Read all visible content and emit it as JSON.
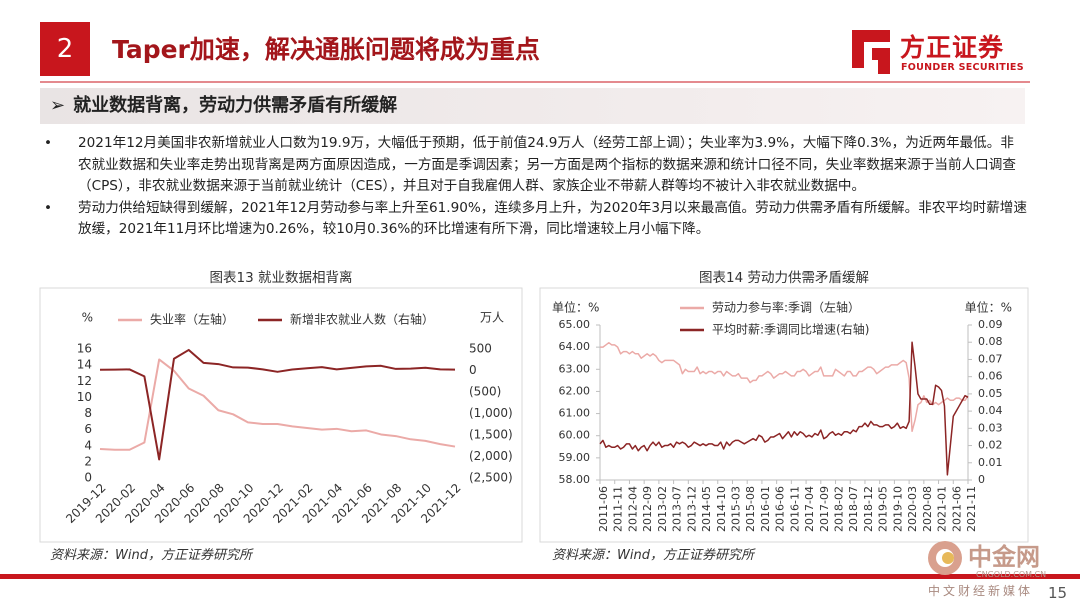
{
  "header": {
    "section_number": "2",
    "title": "Taper加速，解决通胀问题将成为重点"
  },
  "logo": {
    "name": "方正证券",
    "english": "FOUNDER SECURITIES"
  },
  "subheader": "就业数据背离，劳动力供需矛盾有所缓解",
  "bullets": [
    "2021年12月美国非农新增就业人口数为19.9万，大幅低于预期，低于前值24.9万人（经劳工部上调）；失业率为3.9%，大幅下降0.3%，为近两年最低。非农就业数据和失业率走势出现背离是两方面原因造成，一方面是季调因素；另一方面是两个指标的数据来源和统计口径不同，失业率数据来源于当前人口调查（CPS），非农就业数据来源于当前就业统计（CES），并且对于自我雇佣人群、家族企业不带薪人群等均不被计入非农就业数据中。",
    "劳动力供给短缺得到缓解，2021年12月劳动参与率上升至61.90%，连续多月上升，为2020年3月以来最高值。劳动力供需矛盾有所缓解。非农平均时薪增速放缓，2021年11月环比增速为0.26%，较10月0.36%的环比增速有所下滑，同比增速较上月小幅下降。"
  ],
  "chart_data": [
    {
      "type": "line",
      "title": "图表13 就业数据相背离",
      "y_label": "%",
      "y2_label": "万人",
      "categories": [
        "2019-12",
        null,
        "2020-02",
        null,
        "2020-04",
        null,
        "2020-06",
        null,
        "2020-08",
        null,
        "2020-10",
        null,
        "2020-12",
        null,
        "2021-02",
        null,
        "2021-04",
        null,
        "2021-06",
        null,
        "2021-08",
        null,
        "2021-10",
        null,
        "2021-12"
      ],
      "series": [
        {
          "name": "失业率（左轴）",
          "color": "#ebaaa7",
          "values": [
            3.6,
            3.5,
            3.5,
            4.4,
            14.7,
            13.3,
            11.1,
            10.2,
            8.4,
            7.9,
            6.9,
            6.7,
            6.7,
            6.4,
            6.2,
            6.0,
            6.1,
            5.8,
            5.9,
            5.4,
            5.2,
            4.8,
            4.6,
            4.2,
            3.9
          ]
        },
        {
          "name": "新增非农就业人数（右轴）",
          "color": "#8c2525",
          "axis": "y2",
          "values": [
            18.4,
            21.4,
            25.1,
            -137.3,
            -2067.9,
            272.5,
            478.1,
            176.1,
            149.3,
            71.6,
            68,
            26.4,
            -30.6,
            23.3,
            53.6,
            78.5,
            26.9,
            61.4,
            96.2,
            109.1,
            36.6,
            42.4,
            64.8,
            24.9,
            19.9
          ]
        }
      ],
      "ylim": [
        0,
        16
      ],
      "yticks": [
        0,
        2,
        4,
        6,
        8,
        10,
        12,
        14,
        16
      ],
      "y2lim": [
        -2500,
        500
      ],
      "y2ticks": [
        500,
        0,
        {
          "value": -500,
          "label": "(500)"
        },
        {
          "value": -1000,
          "label": "(1,000)"
        },
        {
          "value": -1500,
          "label": "(1,500)"
        },
        {
          "value": -2000,
          "label": "(2,000)"
        },
        {
          "value": -2500,
          "label": "(2,500)"
        }
      ],
      "grid": false,
      "legend": "top",
      "source": "资料来源：Wind，方正证券研究所"
    },
    {
      "type": "line",
      "title": "图表14 劳动力供需矛盾缓解",
      "y_label": "单位：%",
      "y2_label": "单位：%",
      "categories": [
        "2011-06",
        null,
        null,
        null,
        null,
        "2011-11",
        null,
        null,
        null,
        null,
        "2012-04",
        null,
        null,
        null,
        null,
        "2012-09",
        null,
        null,
        null,
        null,
        "2013-02",
        null,
        null,
        null,
        null,
        "2013-07",
        null,
        null,
        null,
        null,
        "2013-12",
        null,
        null,
        null,
        null,
        "2014-05",
        null,
        null,
        null,
        null,
        "2014-10",
        null,
        null,
        null,
        null,
        "2015-03",
        null,
        null,
        null,
        null,
        "2015-08",
        null,
        null,
        null,
        null,
        "2016-01",
        null,
        null,
        null,
        null,
        "2016-06",
        null,
        null,
        null,
        null,
        "2016-11",
        null,
        null,
        null,
        null,
        "2017-04",
        null,
        null,
        null,
        null,
        "2017-09",
        null,
        null,
        null,
        null,
        "2018-02",
        null,
        null,
        null,
        null,
        "2018-07",
        null,
        null,
        null,
        null,
        "2018-12",
        null,
        null,
        null,
        null,
        "2019-05",
        null,
        null,
        null,
        null,
        "2019-10",
        null,
        null,
        null,
        null,
        "2020-03",
        null,
        null,
        null,
        null,
        "2020-08",
        null,
        null,
        null,
        null,
        "2021-01",
        null,
        null,
        null,
        null,
        "2021-06",
        null,
        null,
        null,
        null,
        "2021-11"
      ],
      "series": [
        {
          "name": "劳动力参与率:季调（左轴）",
          "color": "#ebaaa7",
          "values": [
            64.0,
            64.0,
            64.1,
            64.2,
            64.1,
            64.1,
            64.0,
            63.7,
            63.8,
            63.8,
            63.7,
            63.8,
            63.7,
            63.7,
            63.5,
            63.6,
            63.7,
            63.6,
            63.7,
            63.6,
            63.4,
            63.3,
            63.4,
            63.4,
            63.4,
            63.4,
            63.3,
            63.2,
            62.8,
            63.0,
            62.9,
            62.9,
            62.9,
            63.1,
            62.8,
            62.9,
            62.8,
            62.9,
            62.9,
            62.8,
            62.9,
            62.9,
            62.7,
            62.9,
            62.8,
            62.7,
            62.7,
            62.8,
            62.6,
            62.6,
            62.6,
            62.4,
            62.5,
            62.5,
            62.7,
            62.7,
            62.8,
            62.9,
            62.8,
            62.6,
            62.7,
            62.8,
            62.8,
            62.9,
            62.8,
            62.7,
            62.7,
            62.9,
            62.9,
            63.0,
            62.9,
            62.7,
            62.8,
            62.9,
            62.9,
            63.1,
            62.7,
            62.7,
            62.7,
            62.7,
            63.0,
            62.9,
            62.8,
            62.7,
            62.9,
            62.9,
            62.7,
            62.7,
            62.9,
            62.9,
            63.0,
            63.1,
            63.1,
            63.0,
            62.8,
            62.9,
            63.0,
            63.1,
            63.1,
            63.2,
            63.2,
            63.2,
            63.3,
            63.4,
            63.3,
            62.6,
            60.2,
            60.7,
            61.4,
            61.5,
            61.8,
            61.5,
            61.6,
            61.4,
            61.5,
            61.4,
            61.5,
            61.6,
            61.7,
            61.6,
            61.6,
            61.7,
            61.7,
            61.6,
            61.6,
            61.8
          ]
        },
        {
          "name": "平均时薪:季调同比增速(右轴)",
          "color": "#8c2525",
          "axis": "y2",
          "values": [
            0.021,
            0.023,
            0.019,
            0.02,
            0.019,
            0.019,
            0.02,
            0.018,
            0.019,
            0.021,
            0.021,
            0.018,
            0.02,
            0.017,
            0.019,
            0.02,
            0.017,
            0.02,
            0.022,
            0.02,
            0.022,
            0.019,
            0.02,
            0.02,
            0.021,
            0.019,
            0.022,
            0.021,
            0.022,
            0.021,
            0.019,
            0.02,
            0.022,
            0.021,
            0.02,
            0.021,
            0.02,
            0.021,
            0.021,
            0.02,
            0.02,
            0.022,
            0.018,
            0.022,
            0.02,
            0.022,
            0.023,
            0.023,
            0.022,
            0.021,
            0.022,
            0.023,
            0.024,
            0.023,
            0.026,
            0.025,
            0.022,
            0.023,
            0.025,
            0.025,
            0.026,
            0.027,
            0.024,
            0.026,
            0.028,
            0.025,
            0.028,
            0.026,
            0.028,
            0.027,
            0.025,
            0.026,
            0.025,
            0.027,
            0.026,
            0.029,
            0.024,
            0.025,
            0.027,
            0.028,
            0.026,
            0.027,
            0.026,
            0.028,
            0.028,
            0.027,
            0.029,
            0.028,
            0.031,
            0.031,
            0.033,
            0.031,
            0.034,
            0.032,
            0.032,
            0.031,
            0.031,
            0.032,
            0.032,
            0.03,
            0.031,
            0.033,
            0.03,
            0.031,
            0.03,
            0.034,
            0.08,
            0.066,
            0.05,
            0.047,
            0.047,
            0.047,
            0.044,
            0.044,
            0.055,
            0.054,
            0.052,
            0.043,
            0.003,
            0.02,
            0.037,
            0.04,
            0.043,
            0.046,
            0.049,
            0.048
          ]
        }
      ],
      "ylim": [
        58,
        65
      ],
      "yticks": [
        {
          "value": 58,
          "label": "58.00"
        },
        {
          "value": 59,
          "label": "59.00"
        },
        {
          "value": 60,
          "label": "60.00"
        },
        {
          "value": 61,
          "label": "61.00"
        },
        {
          "value": 62,
          "label": "62.00"
        },
        {
          "value": 63,
          "label": "63.00"
        },
        {
          "value": 64,
          "label": "64.00"
        },
        {
          "value": 65,
          "label": "65.00"
        }
      ],
      "y2lim": [
        0,
        0.09
      ],
      "y2ticks": [
        0,
        0.01,
        0.02,
        0.03,
        0.04,
        0.05,
        0.06,
        0.07,
        0.08,
        0.09
      ],
      "grid": false,
      "legend": "top",
      "source": "资料来源：Wind，方正证券研究所"
    }
  ],
  "page_number": "15",
  "watermark": {
    "name": "中金网",
    "site": "CNGOLD.COM.CN",
    "tagline": "中文财经新媒体"
  }
}
